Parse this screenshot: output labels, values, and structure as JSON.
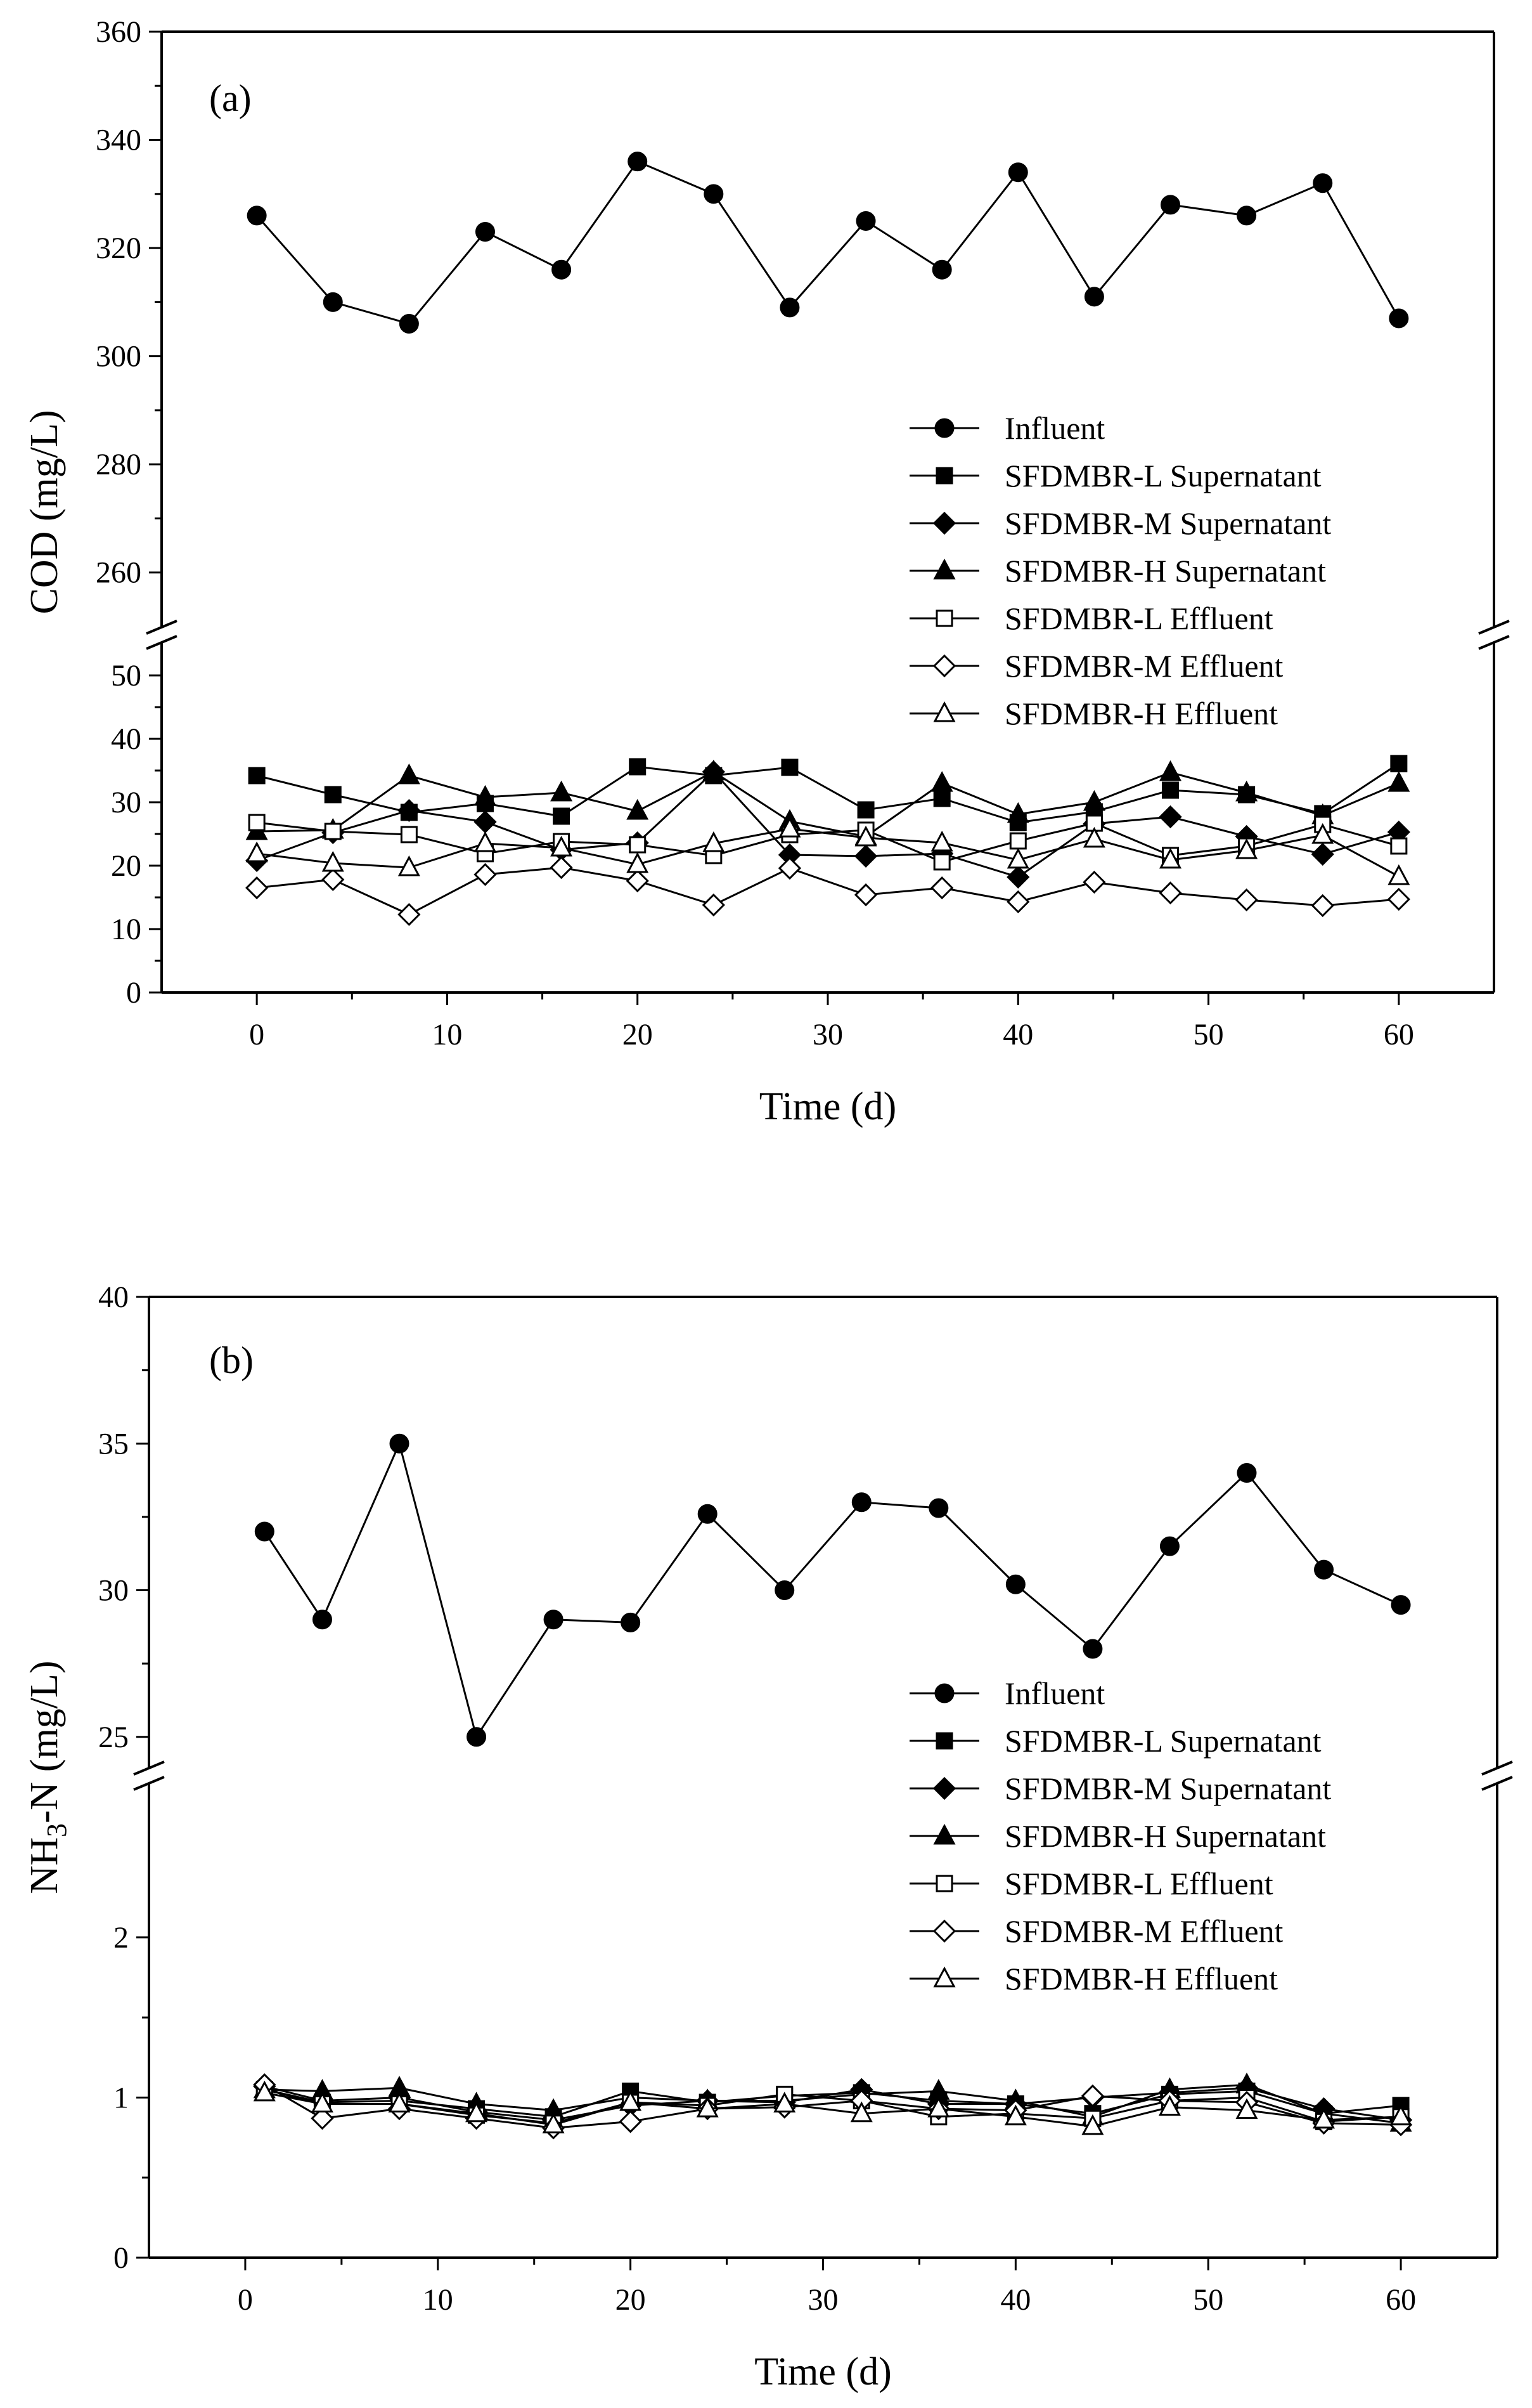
{
  "chart_data": [
    {
      "type": "line",
      "panel_label": "(a)",
      "xlabel": "Time (d)",
      "ylabel": "COD (mg/L)",
      "xlim": [
        -5,
        65
      ],
      "x_ticks": [
        0,
        10,
        20,
        30,
        40,
        50,
        60
      ],
      "x_tick_labels": [
        "0",
        "10",
        "20",
        "30",
        "40",
        "50",
        "60"
      ],
      "y_segments": [
        {
          "range": [
            0,
            55
          ],
          "ticks": [
            0,
            10,
            20,
            30,
            40,
            50
          ],
          "tick_labels": [
            "0",
            "10",
            "20",
            "30",
            "40",
            "50"
          ]
        },
        {
          "range": [
            250,
            360
          ],
          "ticks": [
            260,
            280,
            300,
            320,
            340,
            360
          ],
          "tick_labels": [
            "260",
            "280",
            "300",
            "320",
            "340",
            "360"
          ]
        }
      ],
      "legend_position": "center-right",
      "series": [
        {
          "name": "Influent",
          "marker": "circle",
          "filled": true,
          "x": [
            0,
            4,
            8,
            12,
            16,
            20,
            24,
            28,
            32,
            36,
            40,
            44,
            48,
            52,
            56,
            60
          ],
          "values": [
            326,
            310,
            306,
            323,
            316,
            336,
            330,
            309,
            325,
            316,
            334,
            311,
            328,
            326,
            332,
            307
          ]
        },
        {
          "name": "SFDMBR-L  Supernatant",
          "marker": "square",
          "filled": true,
          "x": [
            0,
            4,
            8,
            12,
            16,
            20,
            24,
            28,
            32,
            36,
            40,
            44,
            48,
            52,
            56,
            60
          ],
          "values": [
            34.2,
            31.2,
            28.4,
            29.8,
            27.8,
            35.6,
            34.2,
            35.5,
            28.8,
            30.6,
            26.8,
            28.5,
            31.9,
            31.2,
            28.2,
            36.1
          ]
        },
        {
          "name": "SFDMBR-M Supernatant",
          "marker": "diamond",
          "filled": true,
          "x": [
            0,
            4,
            8,
            12,
            16,
            20,
            24,
            28,
            32,
            36,
            40,
            44,
            48,
            52,
            56,
            60
          ],
          "values": [
            20.8,
            25.2,
            28.7,
            26.9,
            22.5,
            23.6,
            34.8,
            21.7,
            21.5,
            21.9,
            18.2,
            26.6,
            27.7,
            24.6,
            21.8,
            25.3
          ]
        },
        {
          "name": "SFDMBR-H  Supernatant",
          "marker": "triangle",
          "filled": true,
          "x": [
            0,
            4,
            8,
            12,
            16,
            20,
            24,
            28,
            32,
            36,
            40,
            44,
            48,
            52,
            56,
            60
          ],
          "values": [
            25.4,
            25.6,
            34.2,
            30.8,
            31.5,
            28.6,
            34.8,
            27.0,
            24.6,
            33.0,
            28.1,
            30.0,
            34.7,
            31.5,
            27.9,
            33.0
          ]
        },
        {
          "name": "SFDMBR-L  Effluent",
          "marker": "square",
          "filled": false,
          "x": [
            0,
            4,
            8,
            12,
            16,
            20,
            24,
            28,
            32,
            36,
            40,
            44,
            48,
            52,
            56,
            60
          ],
          "values": [
            26.8,
            25.4,
            24.9,
            21.9,
            23.8,
            23.3,
            21.6,
            24.9,
            25.6,
            20.6,
            23.9,
            26.7,
            21.6,
            23.1,
            26.5,
            23.1
          ]
        },
        {
          "name": "SFDMBR-M Effluent",
          "marker": "diamond",
          "filled": false,
          "x": [
            0,
            4,
            8,
            12,
            16,
            20,
            24,
            28,
            32,
            36,
            40,
            44,
            48,
            52,
            56,
            60
          ],
          "values": [
            16.5,
            17.8,
            12.3,
            18.6,
            19.7,
            17.6,
            13.8,
            19.6,
            15.4,
            16.5,
            14.3,
            17.4,
            15.7,
            14.6,
            13.7,
            14.7
          ]
        },
        {
          "name": "SFDMBR-H  Effluent",
          "marker": "triangle",
          "filled": false,
          "x": [
            0,
            4,
            8,
            12,
            16,
            20,
            24,
            28,
            32,
            36,
            40,
            44,
            48,
            52,
            56,
            60
          ],
          "values": [
            21.9,
            20.4,
            19.7,
            23.5,
            22.8,
            20.2,
            23.5,
            25.8,
            24.4,
            23.6,
            20.9,
            24.2,
            20.9,
            22.4,
            24.8,
            18.3
          ]
        }
      ]
    },
    {
      "type": "line",
      "panel_label": "(b)",
      "xlabel": "Time (d)",
      "ylabel_main": "NH",
      "ylabel_sub": "3",
      "ylabel_tail": "-N (mg/L)",
      "xlim": [
        -5,
        65
      ],
      "x_ticks": [
        0,
        10,
        20,
        30,
        40,
        50,
        60
      ],
      "x_tick_labels": [
        "0",
        "10",
        "20",
        "30",
        "40",
        "50",
        "60"
      ],
      "y_segments": [
        {
          "range": [
            0,
            2.95
          ],
          "ticks": [
            0,
            1,
            2
          ],
          "tick_labels": [
            "0",
            "1",
            "2"
          ]
        },
        {
          "range": [
            24,
            40
          ],
          "ticks": [
            25,
            30,
            35,
            40
          ],
          "tick_labels": [
            "25",
            "30",
            "35",
            "40"
          ]
        }
      ],
      "legend_position": "center-right",
      "series": [
        {
          "name": "Influent",
          "marker": "circle",
          "filled": true,
          "x": [
            1,
            4,
            8,
            12,
            16,
            20,
            24,
            28,
            32,
            36,
            40,
            44,
            48,
            52,
            56,
            60
          ],
          "values": [
            32.0,
            29.0,
            35.0,
            25.0,
            29.0,
            28.9,
            32.6,
            30.0,
            33.0,
            32.8,
            30.2,
            28.0,
            31.5,
            34.0,
            30.7,
            29.5
          ]
        },
        {
          "name": "SFDMBR-L  Supernatant",
          "marker": "square",
          "filled": true,
          "x": [
            1,
            4,
            8,
            12,
            16,
            20,
            24,
            28,
            32,
            36,
            40,
            44,
            48,
            52,
            56,
            60
          ],
          "values": [
            1.05,
            0.97,
            0.98,
            0.93,
            0.88,
            1.04,
            0.97,
            1.01,
            1.03,
            0.98,
            0.96,
            0.9,
            1.02,
            1.04,
            0.9,
            0.95
          ]
        },
        {
          "name": "SFDMBR-M Supernatant",
          "marker": "diamond",
          "filled": true,
          "x": [
            1,
            4,
            8,
            12,
            16,
            20,
            24,
            28,
            32,
            36,
            40,
            44,
            48,
            52,
            56,
            60
          ],
          "values": [
            1.07,
            0.98,
            1.0,
            0.91,
            0.86,
            0.95,
            0.98,
            0.97,
            1.05,
            0.96,
            0.96,
            1.0,
            1.03,
            1.06,
            0.93,
            0.86
          ]
        },
        {
          "name": "SFDMBR-H  Supernatant",
          "marker": "triangle",
          "filled": true,
          "x": [
            1,
            4,
            8,
            12,
            16,
            20,
            24,
            28,
            32,
            36,
            40,
            44,
            48,
            52,
            56,
            60
          ],
          "values": [
            1.05,
            1.04,
            1.06,
            0.96,
            0.92,
            1.0,
            0.98,
            0.98,
            1.02,
            1.04,
            0.98,
            0.88,
            1.05,
            1.08,
            0.9,
            0.84
          ]
        },
        {
          "name": "SFDMBR-L  Effluent",
          "marker": "square",
          "filled": false,
          "x": [
            1,
            4,
            8,
            12,
            16,
            20,
            24,
            28,
            32,
            36,
            40,
            44,
            48,
            52,
            56,
            60
          ],
          "values": [
            1.05,
            0.96,
            0.96,
            0.89,
            0.84,
            0.97,
            0.95,
            1.02,
            0.98,
            0.88,
            0.9,
            0.87,
            0.98,
            1.0,
            0.85,
            0.88
          ]
        },
        {
          "name": "SFDMBR-M Effluent",
          "marker": "diamond",
          "filled": false,
          "x": [
            1,
            4,
            8,
            12,
            16,
            20,
            24,
            28,
            32,
            36,
            40,
            44,
            48,
            52,
            56,
            60
          ],
          "values": [
            1.08,
            0.87,
            0.93,
            0.87,
            0.81,
            0.85,
            0.93,
            0.94,
            0.98,
            0.93,
            0.92,
            1.01,
            0.98,
            0.97,
            0.84,
            0.83
          ]
        },
        {
          "name": "SFDMBR-H  Effluent",
          "marker": "triangle",
          "filled": false,
          "x": [
            1,
            4,
            8,
            12,
            16,
            20,
            24,
            28,
            32,
            36,
            40,
            44,
            48,
            52,
            56,
            60
          ],
          "values": [
            1.03,
            0.96,
            0.96,
            0.9,
            0.83,
            0.97,
            0.93,
            0.96,
            0.9,
            0.93,
            0.88,
            0.82,
            0.94,
            0.92,
            0.86,
            0.88
          ]
        }
      ]
    }
  ]
}
